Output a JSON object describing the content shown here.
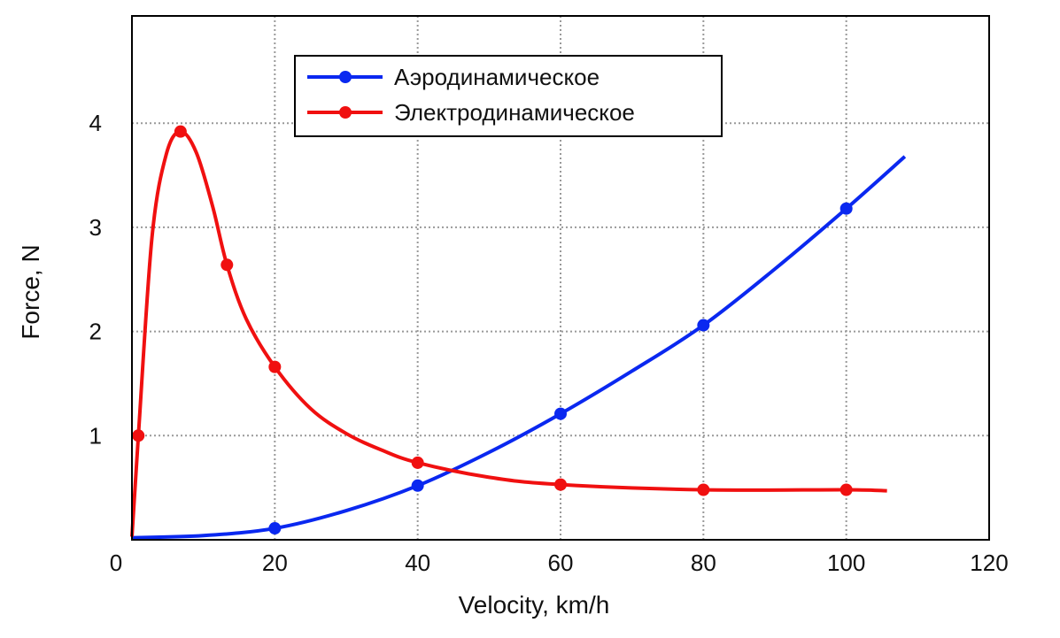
{
  "chart_data": {
    "type": "line",
    "title": "",
    "xlabel": "Velocity, km/h",
    "ylabel": "Force, N",
    "xlim": [
      0,
      120
    ],
    "ylim": [
      0,
      5.03
    ],
    "xticks": [
      0,
      20,
      40,
      60,
      80,
      100,
      120
    ],
    "yticks": [
      1,
      2,
      3,
      4
    ],
    "grid": true,
    "legend_position": "top-center",
    "series": [
      {
        "name": "Аэродинамическое",
        "color": "#0a28f0",
        "markers": [
          [
            20,
            0.11
          ],
          [
            40,
            0.52
          ],
          [
            60,
            1.21
          ],
          [
            80,
            2.06
          ],
          [
            100,
            3.18
          ]
        ],
        "curve": [
          [
            0,
            0.02
          ],
          [
            10,
            0.04
          ],
          [
            20,
            0.11
          ],
          [
            30,
            0.28
          ],
          [
            40,
            0.52
          ],
          [
            50,
            0.84
          ],
          [
            60,
            1.21
          ],
          [
            70,
            1.62
          ],
          [
            80,
            2.06
          ],
          [
            90,
            2.6
          ],
          [
            100,
            3.18
          ],
          [
            108.2,
            3.68
          ]
        ]
      },
      {
        "name": "Электродинамическое",
        "color": "#f01010",
        "markers": [
          [
            0.9,
            1.0
          ],
          [
            6.8,
            3.92
          ],
          [
            13.3,
            2.64
          ],
          [
            20,
            1.66
          ],
          [
            40,
            0.74
          ],
          [
            60,
            0.53
          ],
          [
            80,
            0.48
          ],
          [
            100,
            0.48
          ]
        ],
        "curve": [
          [
            0,
            0.03
          ],
          [
            0.9,
            1.0
          ],
          [
            2.8,
            2.9
          ],
          [
            4.8,
            3.7
          ],
          [
            6.8,
            3.92
          ],
          [
            9,
            3.72
          ],
          [
            11.3,
            3.2
          ],
          [
            13.3,
            2.64
          ],
          [
            16,
            2.12
          ],
          [
            20,
            1.66
          ],
          [
            25,
            1.26
          ],
          [
            30,
            1.02
          ],
          [
            35,
            0.86
          ],
          [
            40,
            0.74
          ],
          [
            50,
            0.6
          ],
          [
            60,
            0.53
          ],
          [
            80,
            0.48
          ],
          [
            100,
            0.48
          ],
          [
            105.7,
            0.47
          ]
        ]
      }
    ]
  }
}
